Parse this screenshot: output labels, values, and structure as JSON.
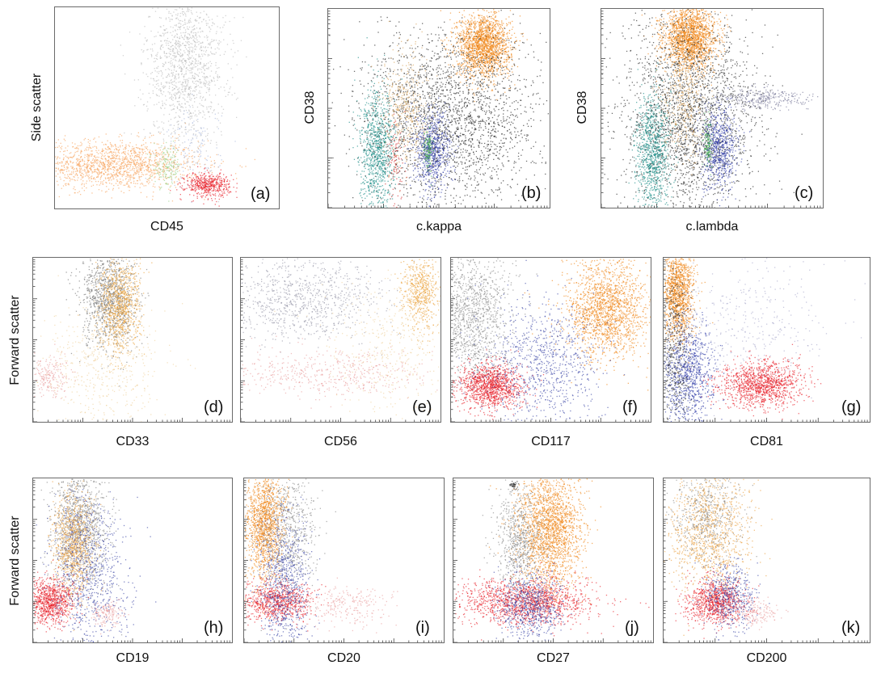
{
  "chart_data": [
    {
      "type": "scatter",
      "panel": "(a)",
      "xlabel": "CD45",
      "ylabel": "Side scatter",
      "series": [
        {
          "color": "#f7a35c",
          "values": [
            {
              "x": 0.25,
              "y": 0.22,
              "sx": 0.2,
              "sy": 0.06,
              "n": 1600
            }
          ]
        },
        {
          "color": "#bbbbbb",
          "values": [
            {
              "x": 0.58,
              "y": 0.72,
              "sx": 0.09,
              "sy": 0.2,
              "n": 1400
            }
          ]
        },
        {
          "color": "#9ad48a",
          "values": [
            {
              "x": 0.5,
              "y": 0.21,
              "sx": 0.03,
              "sy": 0.05,
              "n": 150
            }
          ]
        },
        {
          "color": "#e8202a",
          "values": [
            {
              "x": 0.68,
              "y": 0.12,
              "sx": 0.05,
              "sy": 0.03,
              "n": 500
            }
          ]
        },
        {
          "color": "#a9b8dd",
          "values": [
            {
              "x": 0.62,
              "y": 0.3,
              "sx": 0.06,
              "sy": 0.1,
              "n": 120
            }
          ]
        }
      ]
    },
    {
      "type": "scatter",
      "panel": "(b)",
      "xlabel": "c.kappa",
      "ylabel": "CD38",
      "series": [
        {
          "color": "#f08519",
          "values": [
            {
              "x": 0.7,
              "y": 0.82,
              "sx": 0.06,
              "sy": 0.08,
              "n": 1800
            }
          ]
        },
        {
          "color": "#222222",
          "values": [
            {
              "x": 0.55,
              "y": 0.45,
              "sx": 0.2,
              "sy": 0.22,
              "n": 2400
            }
          ]
        },
        {
          "color": "#168a84",
          "values": [
            {
              "x": 0.22,
              "y": 0.28,
              "sx": 0.04,
              "sy": 0.15,
              "n": 900
            }
          ]
        },
        {
          "color": "#2f3ca8",
          "values": [
            {
              "x": 0.47,
              "y": 0.29,
              "sx": 0.04,
              "sy": 0.1,
              "n": 700
            }
          ]
        },
        {
          "color": "#d9a35a",
          "values": [
            {
              "x": 0.35,
              "y": 0.5,
              "sx": 0.05,
              "sy": 0.15,
              "n": 400
            }
          ]
        },
        {
          "color": "#3aa54a",
          "values": [
            {
              "x": 0.45,
              "y": 0.3,
              "sx": 0.01,
              "sy": 0.05,
              "n": 120
            }
          ]
        },
        {
          "color": "#d22d2d",
          "values": [
            {
              "x": 0.3,
              "y": 0.22,
              "sx": 0.02,
              "sy": 0.12,
              "n": 100
            }
          ]
        }
      ]
    },
    {
      "type": "scatter",
      "panel": "(c)",
      "xlabel": "c.lambda",
      "ylabel": "CD38",
      "series": [
        {
          "color": "#f08519",
          "values": [
            {
              "x": 0.4,
              "y": 0.86,
              "sx": 0.06,
              "sy": 0.08,
              "n": 1800
            }
          ]
        },
        {
          "color": "#222222",
          "values": [
            {
              "x": 0.4,
              "y": 0.45,
              "sx": 0.15,
              "sy": 0.25,
              "n": 2400
            }
          ]
        },
        {
          "color": "#168a84",
          "values": [
            {
              "x": 0.23,
              "y": 0.28,
              "sx": 0.04,
              "sy": 0.15,
              "n": 900
            }
          ]
        },
        {
          "color": "#2f3ca8",
          "values": [
            {
              "x": 0.53,
              "y": 0.3,
              "sx": 0.04,
              "sy": 0.1,
              "n": 700
            }
          ]
        },
        {
          "color": "#d9a35a",
          "values": [
            {
              "x": 0.37,
              "y": 0.55,
              "sx": 0.05,
              "sy": 0.15,
              "n": 400
            }
          ]
        },
        {
          "color": "#7a7a9a",
          "values": [
            {
              "x": 0.72,
              "y": 0.55,
              "sx": 0.1,
              "sy": 0.03,
              "n": 300
            }
          ]
        },
        {
          "color": "#3aa54a",
          "values": [
            {
              "x": 0.48,
              "y": 0.32,
              "sx": 0.01,
              "sy": 0.06,
              "n": 120
            }
          ]
        }
      ]
    },
    {
      "type": "scatter",
      "panel": "(d)",
      "xlabel": "CD33",
      "ylabel": "Forward scatter",
      "series": [
        {
          "color": "#777777",
          "values": [
            {
              "x": 0.38,
              "y": 0.75,
              "sx": 0.07,
              "sy": 0.15,
              "n": 1100
            }
          ]
        },
        {
          "color": "#eba540",
          "values": [
            {
              "x": 0.43,
              "y": 0.7,
              "sx": 0.05,
              "sy": 0.15,
              "n": 900
            }
          ]
        },
        {
          "color": "#e9a0a0",
          "values": [
            {
              "x": 0.08,
              "y": 0.28,
              "sx": 0.05,
              "sy": 0.06,
              "n": 200
            }
          ]
        },
        {
          "color": "#f0d2a0",
          "values": [
            {
              "x": 0.35,
              "y": 0.35,
              "sx": 0.15,
              "sy": 0.2,
              "n": 500
            }
          ]
        }
      ]
    },
    {
      "type": "scatter",
      "panel": "(e)",
      "xlabel": "CD56",
      "ylabel": "",
      "series": [
        {
          "color": "#9a9aaa",
          "values": [
            {
              "x": 0.3,
              "y": 0.75,
              "sx": 0.2,
              "sy": 0.12,
              "n": 900
            }
          ]
        },
        {
          "color": "#eba540",
          "values": [
            {
              "x": 0.9,
              "y": 0.8,
              "sx": 0.05,
              "sy": 0.12,
              "n": 600
            }
          ]
        },
        {
          "color": "#e9a0a0",
          "values": [
            {
              "x": 0.4,
              "y": 0.3,
              "sx": 0.25,
              "sy": 0.07,
              "n": 500
            }
          ]
        },
        {
          "color": "#f0d2a0",
          "values": [
            {
              "x": 0.75,
              "y": 0.45,
              "sx": 0.15,
              "sy": 0.2,
              "n": 400
            }
          ]
        }
      ]
    },
    {
      "type": "scatter",
      "panel": "(f)",
      "xlabel": "CD117",
      "ylabel": "",
      "series": [
        {
          "color": "#888888",
          "values": [
            {
              "x": 0.1,
              "y": 0.65,
              "sx": 0.1,
              "sy": 0.22,
              "n": 1300
            }
          ]
        },
        {
          "color": "#f08519",
          "values": [
            {
              "x": 0.78,
              "y": 0.68,
              "sx": 0.1,
              "sy": 0.15,
              "n": 1700
            }
          ]
        },
        {
          "color": "#e8202a",
          "values": [
            {
              "x": 0.2,
              "y": 0.22,
              "sx": 0.08,
              "sy": 0.07,
              "n": 1200
            }
          ]
        },
        {
          "color": "#3e48a8",
          "values": [
            {
              "x": 0.45,
              "y": 0.35,
              "sx": 0.15,
              "sy": 0.2,
              "n": 900
            }
          ]
        }
      ]
    },
    {
      "type": "scatter",
      "panel": "(g)",
      "xlabel": "CD81",
      "ylabel": "",
      "series": [
        {
          "color": "#f08519",
          "values": [
            {
              "x": 0.07,
              "y": 0.8,
              "sx": 0.04,
              "sy": 0.15,
              "n": 1300
            }
          ]
        },
        {
          "color": "#e8202a",
          "values": [
            {
              "x": 0.47,
              "y": 0.23,
              "sx": 0.1,
              "sy": 0.07,
              "n": 1200
            }
          ]
        },
        {
          "color": "#2f3ca8",
          "values": [
            {
              "x": 0.12,
              "y": 0.3,
              "sx": 0.06,
              "sy": 0.15,
              "n": 900
            }
          ]
        },
        {
          "color": "#333333",
          "values": [
            {
              "x": 0.05,
              "y": 0.45,
              "sx": 0.04,
              "sy": 0.25,
              "n": 500
            }
          ]
        },
        {
          "color": "#aaaacc",
          "values": [
            {
              "x": 0.4,
              "y": 0.6,
              "sx": 0.2,
              "sy": 0.2,
              "n": 400
            }
          ]
        }
      ]
    },
    {
      "type": "scatter",
      "panel": "(h)",
      "xlabel": "CD19",
      "ylabel": "Forward scatter",
      "series": [
        {
          "color": "#888888",
          "values": [
            {
              "x": 0.23,
              "y": 0.7,
              "sx": 0.07,
              "sy": 0.18,
              "n": 1300
            }
          ]
        },
        {
          "color": "#e9a040",
          "values": [
            {
              "x": 0.2,
              "y": 0.58,
              "sx": 0.05,
              "sy": 0.15,
              "n": 900
            }
          ]
        },
        {
          "color": "#e8202a",
          "values": [
            {
              "x": 0.08,
              "y": 0.25,
              "sx": 0.06,
              "sy": 0.07,
              "n": 900
            }
          ]
        },
        {
          "color": "#3e48a8",
          "values": [
            {
              "x": 0.28,
              "y": 0.4,
              "sx": 0.1,
              "sy": 0.25,
              "n": 800
            }
          ]
        },
        {
          "color": "#e9a0a0",
          "values": [
            {
              "x": 0.37,
              "y": 0.17,
              "sx": 0.04,
              "sy": 0.04,
              "n": 150
            }
          ]
        }
      ]
    },
    {
      "type": "scatter",
      "panel": "(i)",
      "xlabel": "CD20",
      "ylabel": "",
      "series": [
        {
          "color": "#f08519",
          "values": [
            {
              "x": 0.1,
              "y": 0.72,
              "sx": 0.05,
              "sy": 0.18,
              "n": 1400
            }
          ]
        },
        {
          "color": "#888888",
          "values": [
            {
              "x": 0.22,
              "y": 0.7,
              "sx": 0.07,
              "sy": 0.2,
              "n": 700
            }
          ]
        },
        {
          "color": "#e8202a",
          "values": [
            {
              "x": 0.15,
              "y": 0.25,
              "sx": 0.09,
              "sy": 0.06,
              "n": 800
            }
          ]
        },
        {
          "color": "#3e48a8",
          "values": [
            {
              "x": 0.2,
              "y": 0.35,
              "sx": 0.06,
              "sy": 0.22,
              "n": 800
            }
          ]
        },
        {
          "color": "#e9a0a0",
          "values": [
            {
              "x": 0.5,
              "y": 0.22,
              "sx": 0.12,
              "sy": 0.06,
              "n": 250
            }
          ]
        }
      ]
    },
    {
      "type": "scatter",
      "panel": "(j)",
      "xlabel": "CD27",
      "ylabel": "",
      "series": [
        {
          "color": "#f08519",
          "values": [
            {
              "x": 0.48,
              "y": 0.68,
              "sx": 0.08,
              "sy": 0.18,
              "n": 2000
            }
          ]
        },
        {
          "color": "#888888",
          "values": [
            {
              "x": 0.33,
              "y": 0.62,
              "sx": 0.06,
              "sy": 0.15,
              "n": 700
            }
          ]
        },
        {
          "color": "#e8202a",
          "values": [
            {
              "x": 0.35,
              "y": 0.25,
              "sx": 0.17,
              "sy": 0.07,
              "n": 1400
            }
          ]
        },
        {
          "color": "#3e48a8",
          "values": [
            {
              "x": 0.38,
              "y": 0.22,
              "sx": 0.08,
              "sy": 0.1,
              "n": 700
            }
          ]
        },
        {
          "color": "#333333",
          "values": [
            {
              "x": 0.3,
              "y": 0.96,
              "sx": 0.01,
              "sy": 0.01,
              "n": 40
            }
          ]
        }
      ]
    },
    {
      "type": "scatter",
      "panel": "(k)",
      "xlabel": "CD200",
      "ylabel": "",
      "series": [
        {
          "color": "#e9a040",
          "values": [
            {
              "x": 0.22,
              "y": 0.68,
              "sx": 0.1,
              "sy": 0.18,
              "n": 1100
            }
          ]
        },
        {
          "color": "#888888",
          "values": [
            {
              "x": 0.2,
              "y": 0.78,
              "sx": 0.08,
              "sy": 0.15,
              "n": 500
            }
          ]
        },
        {
          "color": "#e8202a",
          "values": [
            {
              "x": 0.25,
              "y": 0.25,
              "sx": 0.07,
              "sy": 0.07,
              "n": 900
            }
          ]
        },
        {
          "color": "#3e48a8",
          "values": [
            {
              "x": 0.32,
              "y": 0.28,
              "sx": 0.06,
              "sy": 0.1,
              "n": 500
            }
          ]
        },
        {
          "color": "#e9a0a0",
          "values": [
            {
              "x": 0.45,
              "y": 0.18,
              "sx": 0.06,
              "sy": 0.04,
              "n": 150
            }
          ]
        }
      ]
    }
  ]
}
